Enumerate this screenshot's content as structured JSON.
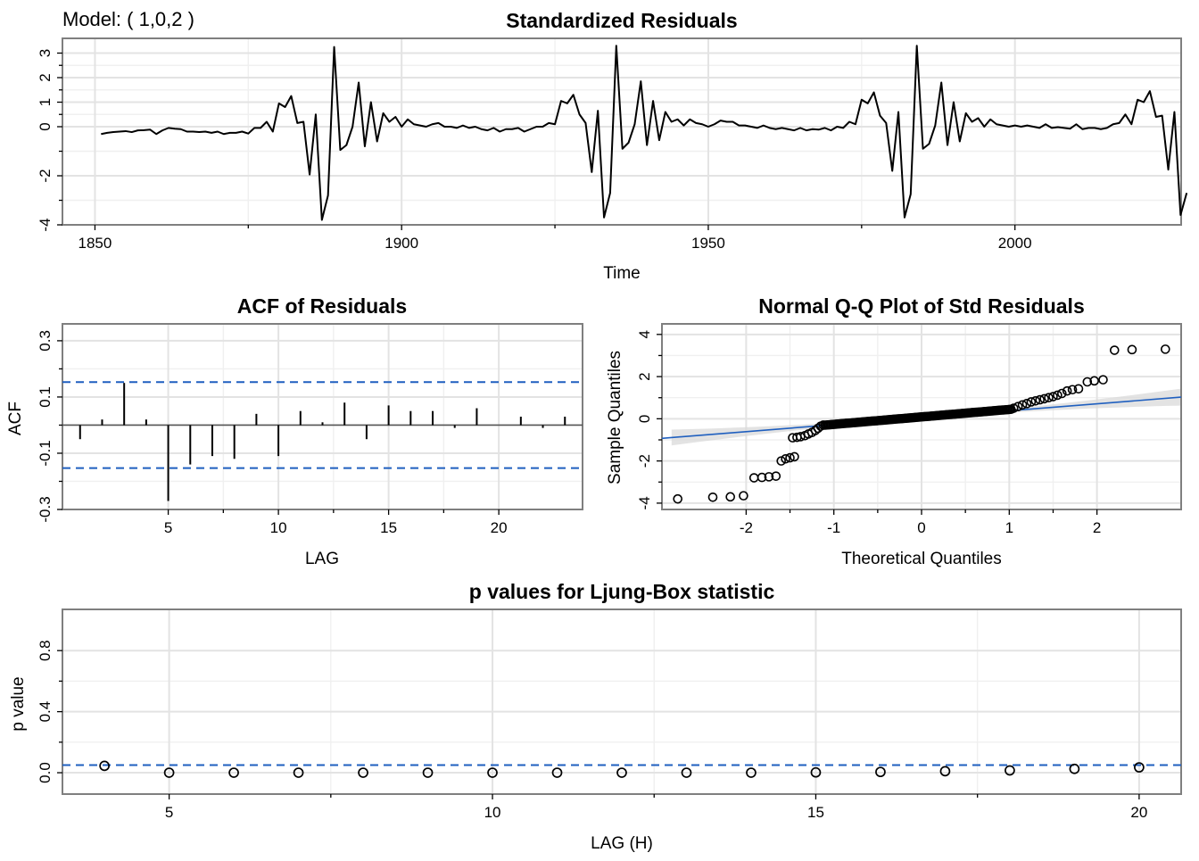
{
  "model_label": "Model: ( 1,0,2 )",
  "colors": {
    "reference_line": "#1f5fbf",
    "ci_band": "#d9d9d9",
    "series": "#000000",
    "grid": "#e3e3e3",
    "frame": "#7f7f7f"
  },
  "chart_data": [
    {
      "id": "std_residuals",
      "type": "line",
      "title": "Standardized Residuals",
      "xlabel": "Time",
      "ylabel": "",
      "xlim": [
        1844.7,
        2027.1
      ],
      "ylim": [
        -4.0,
        3.6
      ],
      "xticks": [
        1850,
        1900,
        1950,
        2000
      ],
      "xtick_labels": [
        "1850",
        "1900",
        "1950",
        "2000"
      ],
      "yticks": [
        -4,
        -2,
        0,
        1,
        2,
        3
      ],
      "ytick_labels": [
        "-4",
        "-2",
        "0",
        "1",
        "2",
        "3"
      ],
      "grid": true,
      "x_start": 1851,
      "x_step": 1,
      "y": [
        -0.3,
        -0.25,
        -0.22,
        -0.2,
        -0.18,
        -0.22,
        -0.15,
        -0.14,
        -0.12,
        -0.3,
        -0.15,
        -0.05,
        -0.08,
        -0.1,
        -0.2,
        -0.2,
        -0.22,
        -0.2,
        -0.25,
        -0.2,
        -0.3,
        -0.25,
        -0.25,
        -0.2,
        -0.28,
        -0.05,
        -0.05,
        0.2,
        -0.2,
        0.95,
        0.8,
        1.25,
        0.15,
        0.2,
        -1.95,
        0.5,
        -3.8,
        -2.8,
        3.25,
        -0.95,
        -0.75,
        0.0,
        1.8,
        -0.8,
        1.0,
        -0.6,
        0.55,
        0.2,
        0.4,
        0.0,
        0.3,
        0.1,
        0.05,
        0.0,
        0.1,
        0.15,
        0.0,
        0.0,
        -0.05,
        0.05,
        -0.05,
        0.0,
        -0.1,
        -0.15,
        -0.05,
        -0.2,
        -0.1,
        -0.1,
        -0.05,
        -0.2,
        -0.1,
        0.0,
        0.0,
        0.15,
        0.1,
        1.05,
        0.95,
        1.3,
        0.5,
        0.15,
        -1.85,
        0.65,
        -3.7,
        -2.7,
        3.3,
        -0.9,
        -0.65,
        0.1,
        1.85,
        -0.75,
        1.05,
        -0.55,
        0.6,
        0.2,
        0.3,
        0.05,
        0.3,
        0.15,
        0.1,
        0.0,
        0.1,
        0.25,
        0.2,
        0.2,
        0.05,
        0.05,
        0.0,
        -0.05,
        0.05,
        -0.05,
        -0.1,
        -0.05,
        -0.1,
        -0.15,
        -0.05,
        -0.15,
        -0.1,
        -0.12,
        -0.05,
        -0.15,
        0.0,
        -0.05,
        0.2,
        0.1,
        1.1,
        0.95,
        1.4,
        0.45,
        0.15,
        -1.8,
        0.6,
        -3.7,
        -2.75,
        3.3,
        -0.9,
        -0.7,
        0.05,
        1.8,
        -0.75,
        1.0,
        -0.6,
        0.55,
        0.2,
        0.35,
        0.0,
        0.3,
        0.1,
        0.05,
        0.0,
        0.05,
        0.0,
        0.05,
        0.0,
        -0.05,
        0.1,
        -0.05,
        -0.02,
        -0.05,
        -0.08,
        0.1,
        -0.1,
        -0.05,
        -0.05,
        -0.1,
        -0.05,
        0.1,
        0.15,
        0.5,
        0.1,
        1.1,
        1.0,
        1.45,
        0.4,
        0.45,
        -1.75,
        0.6,
        -3.6,
        -2.7
      ]
    },
    {
      "id": "acf",
      "type": "bar",
      "title": "ACF of Residuals",
      "xlabel": "LAG",
      "ylabel": "ACF",
      "xlim": [
        0.2,
        23.8
      ],
      "ylim": [
        -0.3,
        0.36
      ],
      "xticks": [
        5,
        10,
        15,
        20
      ],
      "xtick_labels": [
        "5",
        "10",
        "15",
        "20"
      ],
      "yticks": [
        -0.3,
        -0.1,
        0.1,
        0.3
      ],
      "ytick_labels": [
        "-0.3",
        "-0.1",
        "0.1",
        "0.3"
      ],
      "grid": true,
      "confidence_bound": 0.153,
      "lags": [
        1,
        2,
        3,
        4,
        5,
        6,
        7,
        8,
        9,
        10,
        11,
        12,
        13,
        14,
        15,
        16,
        17,
        18,
        19,
        20,
        21,
        22,
        23
      ],
      "values": [
        -0.05,
        0.02,
        0.15,
        0.02,
        -0.27,
        -0.14,
        -0.11,
        -0.12,
        0.04,
        -0.11,
        0.05,
        0.01,
        0.08,
        -0.05,
        0.07,
        0.05,
        0.05,
        -0.01,
        0.06,
        0.0,
        0.03,
        -0.01,
        0.03
      ]
    },
    {
      "id": "qq",
      "type": "scatter",
      "title": "Normal Q-Q Plot of Std Residuals",
      "xlabel": "Theoretical Quantiles",
      "ylabel": "Sample Quantiles",
      "xlim": [
        -2.96,
        2.96
      ],
      "ylim": [
        -4.3,
        4.5
      ],
      "xticks": [
        -2,
        -1,
        0,
        1,
        2
      ],
      "xtick_labels": [
        "-2",
        "-1",
        "0",
        "1",
        "2"
      ],
      "yticks": [
        -4,
        -2,
        0,
        2,
        4
      ],
      "ytick_labels": [
        "-4",
        "-2",
        "0",
        "2",
        "4"
      ],
      "grid": true,
      "reference_line": {
        "intercept": 0.05,
        "slope": 0.33
      },
      "points": [
        [
          -2.78,
          -3.8
        ],
        [
          -2.38,
          -3.72
        ],
        [
          -2.18,
          -3.7
        ],
        [
          -2.03,
          -3.65
        ],
        [
          -1.91,
          -2.8
        ],
        [
          -1.82,
          -2.78
        ],
        [
          -1.74,
          -2.75
        ],
        [
          -1.66,
          -2.72
        ],
        [
          -1.6,
          -2.0
        ],
        [
          -1.55,
          -1.9
        ],
        [
          -1.5,
          -1.85
        ],
        [
          -1.45,
          -1.8
        ],
        [
          -1.47,
          -0.9
        ],
        [
          -1.42,
          -0.88
        ],
        [
          -1.38,
          -0.85
        ],
        [
          -1.33,
          -0.8
        ],
        [
          -1.29,
          -0.72
        ],
        [
          -1.25,
          -0.65
        ],
        [
          -1.21,
          -0.55
        ],
        [
          -1.18,
          -0.45
        ],
        [
          -1.15,
          -0.35
        ],
        [
          -1.12,
          -0.3
        ],
        [
          1.05,
          0.5
        ],
        [
          1.1,
          0.58
        ],
        [
          1.15,
          0.66
        ],
        [
          1.2,
          0.72
        ],
        [
          1.25,
          0.8
        ],
        [
          1.3,
          0.85
        ],
        [
          1.35,
          0.9
        ],
        [
          1.4,
          0.95
        ],
        [
          1.45,
          1.0
        ],
        [
          1.5,
          1.05
        ],
        [
          1.55,
          1.12
        ],
        [
          1.6,
          1.2
        ],
        [
          1.66,
          1.32
        ],
        [
          1.72,
          1.38
        ],
        [
          1.79,
          1.42
        ],
        [
          1.89,
          1.75
        ],
        [
          1.97,
          1.8
        ],
        [
          2.07,
          1.85
        ],
        [
          2.2,
          3.25
        ],
        [
          2.4,
          3.28
        ],
        [
          2.78,
          3.3
        ]
      ],
      "dense_segment": {
        "x": [
          -1.1,
          1.02
        ],
        "y": [
          -0.3,
          0.45
        ],
        "count": 150
      }
    },
    {
      "id": "ljung_box",
      "type": "scatter",
      "title": "p values for Ljung-Box statistic",
      "xlabel": "LAG (H)",
      "ylabel": "p value",
      "xlim": [
        3.35,
        20.65
      ],
      "ylim": [
        -0.14,
        1.07
      ],
      "xticks": [
        5,
        10,
        15,
        20
      ],
      "xtick_labels": [
        "5",
        "10",
        "15",
        "20"
      ],
      "yticks": [
        0.0,
        0.4,
        0.8
      ],
      "ytick_labels": [
        "0.0",
        "0.4",
        "0.8"
      ],
      "grid": true,
      "significance_line": 0.05,
      "lags": [
        4,
        5,
        6,
        7,
        8,
        9,
        10,
        11,
        12,
        13,
        14,
        15,
        16,
        17,
        18,
        19,
        20
      ],
      "values": [
        0.045,
        0.0,
        0.0,
        0.0,
        0.0,
        0.0,
        0.0,
        0.0,
        0.0,
        0.0,
        0.0,
        0.002,
        0.005,
        0.01,
        0.015,
        0.025,
        0.035
      ]
    }
  ]
}
